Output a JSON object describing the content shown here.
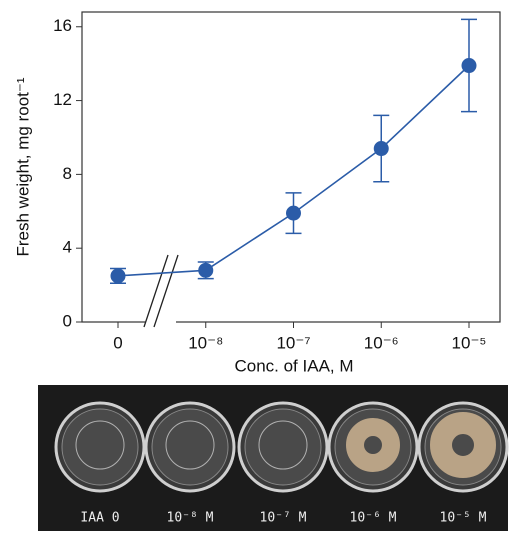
{
  "chart_data": {
    "type": "line",
    "y_label": "Fresh weight, mg root⁻¹",
    "x_label": "Conc. of IAA, M",
    "categories": [
      "0",
      "10⁻⁸",
      "10⁻⁷",
      "10⁻⁶",
      "10⁻⁵"
    ],
    "values": [
      2.5,
      2.8,
      5.9,
      9.4,
      13.9
    ],
    "errors": [
      0.4,
      0.45,
      1.1,
      1.8,
      2.5
    ],
    "color": "#2b5ca8",
    "ylim": [
      0,
      16.8
    ],
    "yticks": [
      0,
      4,
      8,
      12,
      16
    ]
  },
  "photo": {
    "labels": [
      "IAA 0",
      "10⁻⁸ M",
      "10⁻⁷ M",
      "10⁻⁶ M",
      "10⁻⁵ M"
    ]
  }
}
